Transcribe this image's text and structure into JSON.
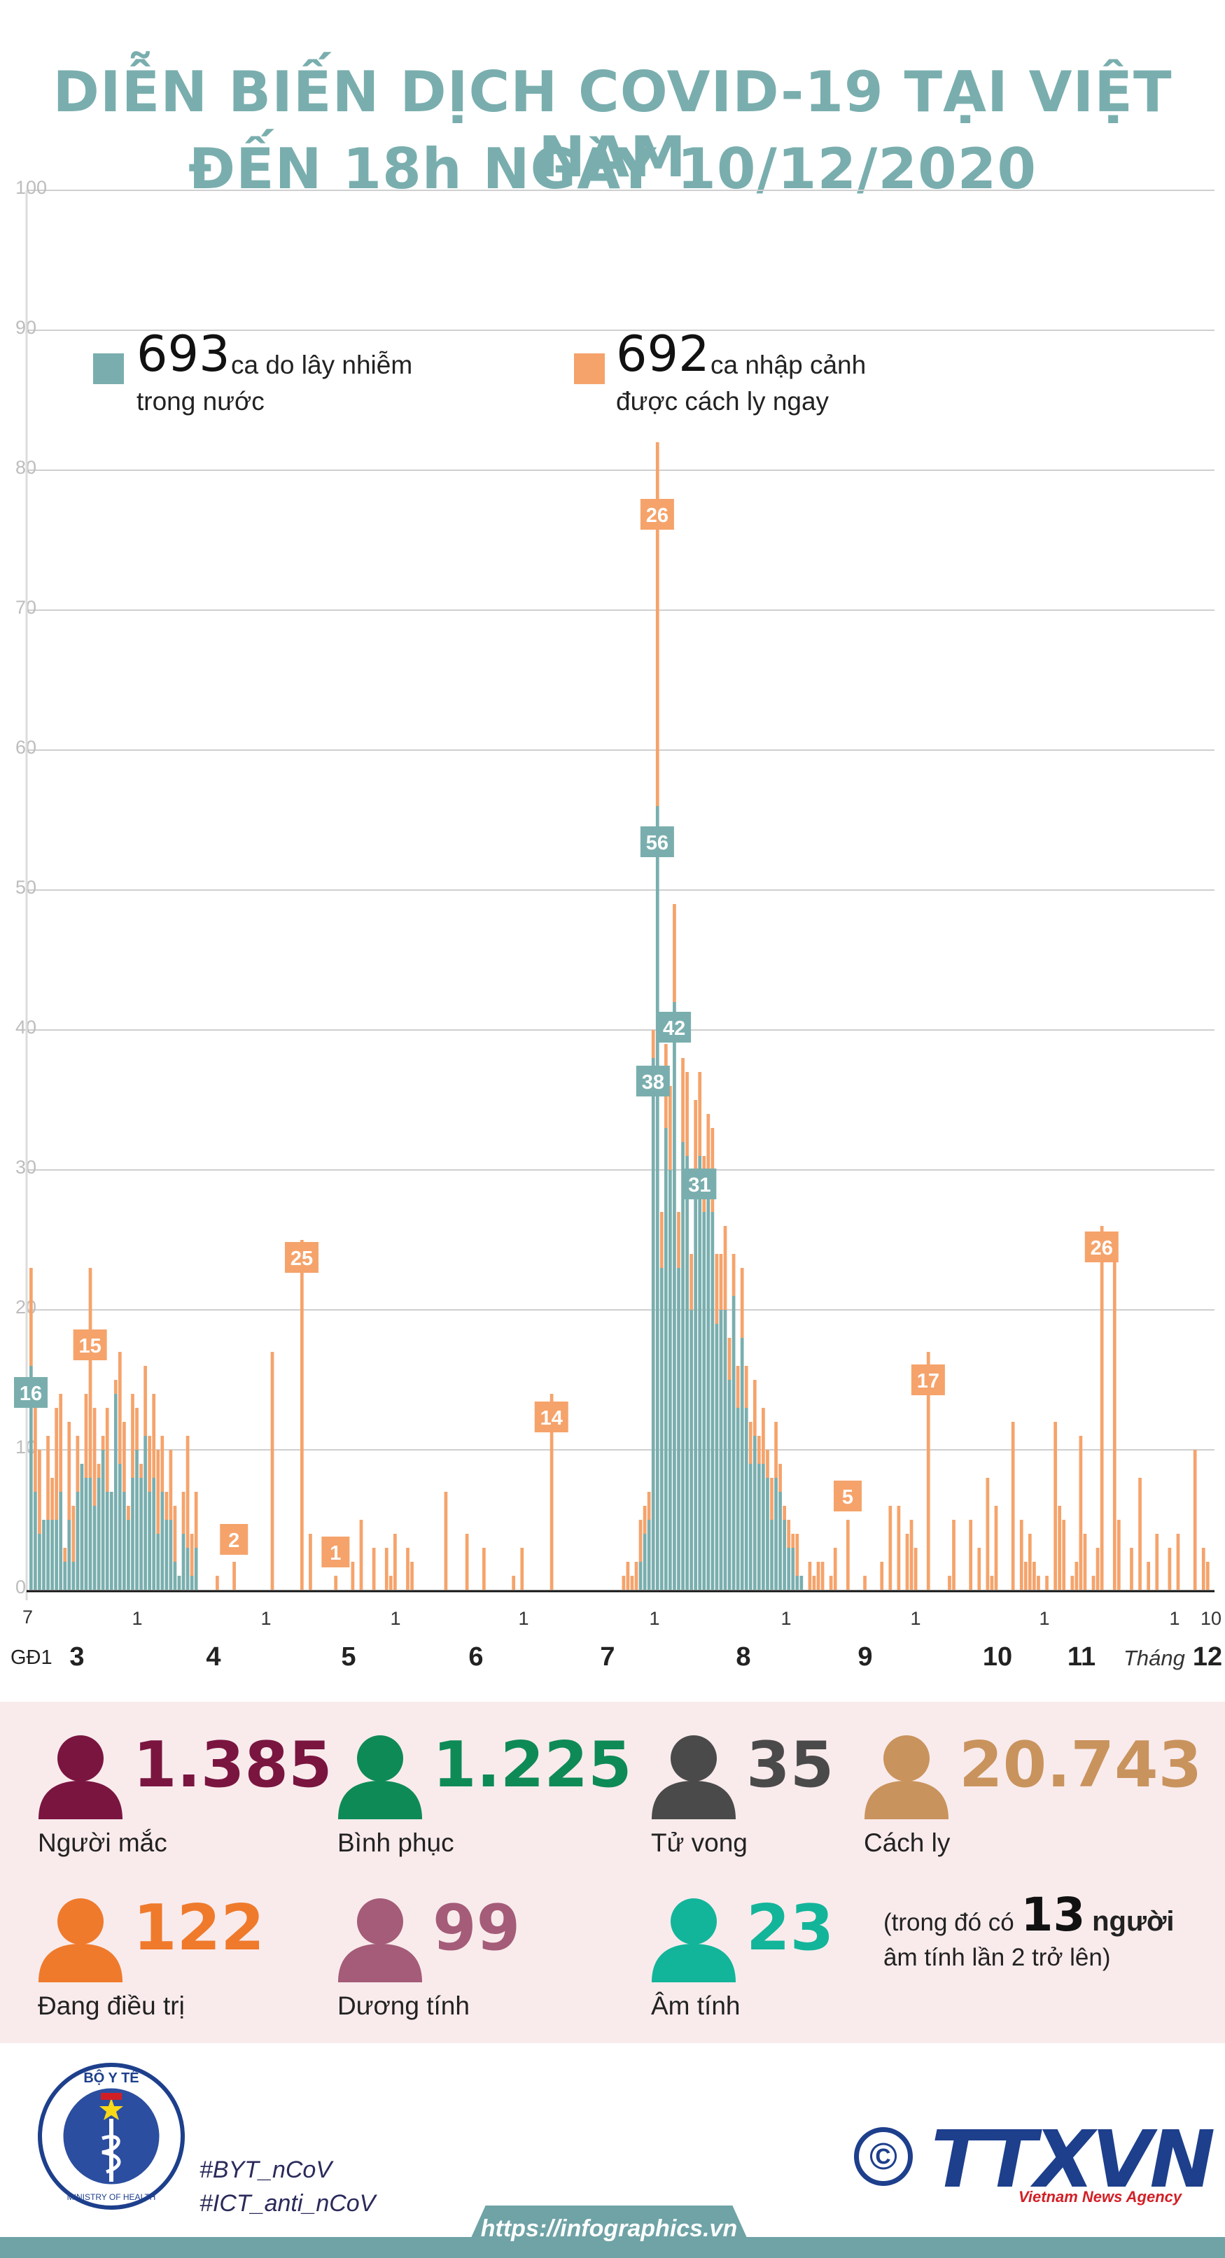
{
  "title": {
    "line1": "DIỄN BIẾN DỊCH COVID-19 TẠI VIỆT NAM",
    "line2": "ĐẾN 18h NGÀY 10/12/2020"
  },
  "legend": [
    {
      "number": "693",
      "text1": "ca do lây nhiễm",
      "text2": "trong nước",
      "color": "#7aaeae"
    },
    {
      "number": "692",
      "text1": "ca nhập cảnh",
      "text2": "được cách ly ngay",
      "color": "#f5a36b"
    }
  ],
  "chart_data": {
    "type": "bar",
    "title": "DIỄN BIẾN DỊCH COVID-19 TẠI VIỆT NAM ĐẾN 18h NGÀY 10/12/2020",
    "ylim": [
      0,
      100
    ],
    "yticks": [
      "0",
      "10",
      "20",
      "30",
      "40",
      "50",
      "60",
      "70",
      "80",
      "90",
      "100"
    ],
    "grid": true,
    "x_start_label": "7",
    "x_start_sub": "GĐ1",
    "months": [
      {
        "label": "3",
        "day1": "1"
      },
      {
        "label": "4",
        "day1": "1"
      },
      {
        "label": "5",
        "day1": "1"
      },
      {
        "label": "6",
        "day1": "1"
      },
      {
        "label": "7",
        "day1": "1"
      },
      {
        "label": "8",
        "day1": "1"
      },
      {
        "label": "9",
        "day1": "1"
      },
      {
        "label": "10",
        "day1": "1"
      },
      {
        "label": "11",
        "day1": "1"
      },
      {
        "label": "12",
        "day1": "1"
      }
    ],
    "x_end_label": "10",
    "month_word": "Tháng",
    "series": [
      {
        "name": "ca do lây nhiễm trong nước",
        "color": "#7aaeae"
      },
      {
        "name": "ca nhập cảnh được cách ly ngay",
        "color": "#f5a36b"
      }
    ],
    "annotations": [
      {
        "value": "16",
        "series": 0
      },
      {
        "value": "15",
        "series": 1
      },
      {
        "value": "2",
        "series": 1
      },
      {
        "value": "25",
        "series": 1
      },
      {
        "value": "1",
        "series": 1
      },
      {
        "value": "14",
        "series": 1
      },
      {
        "value": "26",
        "series": 1
      },
      {
        "value": "56",
        "series": 0
      },
      {
        "value": "38",
        "series": 0
      },
      {
        "value": "42",
        "series": 0
      },
      {
        "value": "31",
        "series": 0
      },
      {
        "value": "5",
        "series": 1
      },
      {
        "value": "17",
        "series": 1
      },
      {
        "value": "26",
        "series": 1
      }
    ]
  },
  "stats": [
    {
      "value": "1.385",
      "label": "Người mắc",
      "color": "#7a1540"
    },
    {
      "value": "1.225",
      "label": "Bình phục",
      "color": "#0e8a56"
    },
    {
      "value": "35",
      "label": "Tử vong",
      "color": "#4a4a4a"
    },
    {
      "value": "20.743",
      "label": "Cách ly",
      "color": "#c9935d"
    },
    {
      "value": "122",
      "label": "Đang điều trị",
      "color": "#ef7a2c"
    },
    {
      "value": "99",
      "label": "Dương tính",
      "color": "#a45c78"
    },
    {
      "value": "23",
      "label": "Âm tính",
      "color": "#12b59a"
    }
  ],
  "note": {
    "prefix": "(trong đó có",
    "number": "13",
    "suffix": "người",
    "line2": "âm tính lần 2 trở lên)"
  },
  "footer": {
    "hashtag1": "#BYT_nCoV",
    "hashtag2": "#ICT_anti_nCoV",
    "url": "https://infographics.vn",
    "logo_text": "TTXVN",
    "logo_sub": "Vietnam News Agency",
    "copyright": "©",
    "moh_top": "BỘ Y TẾ",
    "moh_bottom": "MINISTRY OF HEALTH"
  }
}
